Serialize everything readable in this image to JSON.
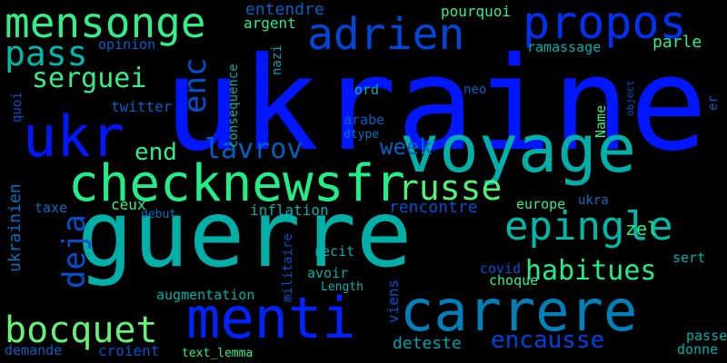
{
  "words": [
    {
      "text": "ukraine",
      "color": "#0016ff"
    },
    {
      "text": "guerre",
      "color": "#00b0a8"
    },
    {
      "text": "voyage",
      "color": "#00b0a8"
    },
    {
      "text": "menti",
      "color": "#0022ff"
    },
    {
      "text": "carrere",
      "color": "#0080b8"
    },
    {
      "text": "checknewsfr",
      "color": "#22ee88"
    },
    {
      "text": "mensonge",
      "color": "#33ee88"
    },
    {
      "text": "propos",
      "color": "#0030f0"
    },
    {
      "text": "adrien",
      "color": "#0046d8"
    },
    {
      "text": "ukr",
      "color": "#0016ff"
    },
    {
      "text": "pass",
      "color": "#00b8a8"
    },
    {
      "text": "epingle",
      "color": "#00b8a8"
    },
    {
      "text": "russe",
      "color": "#55f077"
    },
    {
      "text": "bocquet",
      "color": "#66f077"
    },
    {
      "text": "habitues",
      "color": "#22ee88"
    },
    {
      "text": "deja",
      "color": "#0050d0"
    },
    {
      "text": "serguei",
      "color": "#33ee88"
    },
    {
      "text": "lavrov",
      "color": "#0060c4"
    },
    {
      "text": "week",
      "color": "#0060c4"
    },
    {
      "text": "end",
      "color": "#33ee88"
    },
    {
      "text": "enc",
      "color": "#0050d0"
    },
    {
      "text": "encausse",
      "color": "#0040e0"
    },
    {
      "text": "zel",
      "color": "#22ee88"
    },
    {
      "text": "rencontre",
      "color": "#0050d0"
    },
    {
      "text": "ukrainien",
      "color": "#0070c0"
    },
    {
      "text": "deteste",
      "color": "#00a0b0"
    },
    {
      "text": "entendre",
      "color": "#0060c4"
    },
    {
      "text": "pourquoi",
      "color": "#33ee88"
    },
    {
      "text": "parle",
      "color": "#33ee88"
    },
    {
      "text": "ramassage",
      "color": "#00b0a8"
    },
    {
      "text": "opinion",
      "color": "#0060c4"
    },
    {
      "text": "argent",
      "color": "#22ee88"
    },
    {
      "text": "nazi",
      "color": "#00a0b0"
    },
    {
      "text": "consequence",
      "color": "#00b0a8"
    },
    {
      "text": "ord",
      "color": "#00b0a8"
    },
    {
      "text": "neo",
      "color": "#0060c4"
    },
    {
      "text": "quoi",
      "color": "#0050d0"
    },
    {
      "text": "twitter",
      "color": "#0060c4"
    },
    {
      "text": "arabe",
      "color": "#0060c4"
    },
    {
      "text": "dtype",
      "color": "#0070c0"
    },
    {
      "text": "Name",
      "color": "#33ee88"
    },
    {
      "text": "object",
      "color": "#0050d0"
    },
    {
      "text": "er",
      "color": "#0060c4"
    },
    {
      "text": "europe",
      "color": "#33ee88"
    },
    {
      "text": "ukra",
      "color": "#0070c0"
    },
    {
      "text": "taxe",
      "color": "#0070c0"
    },
    {
      "text": "ceux",
      "color": "#33ee88"
    },
    {
      "text": "debut",
      "color": "#0070c0"
    },
    {
      "text": "inflation",
      "color": "#00b0a8"
    },
    {
      "text": "militaire",
      "color": "#0050d0"
    },
    {
      "text": "recit",
      "color": "#00b0a8"
    },
    {
      "text": "avoir",
      "color": "#00b0a8"
    },
    {
      "text": "Length",
      "color": "#00b0a8"
    },
    {
      "text": "viens",
      "color": "#0050d0"
    },
    {
      "text": "covid",
      "color": "#0050d0"
    },
    {
      "text": "choque",
      "color": "#33ee88"
    },
    {
      "text": "augmentation",
      "color": "#00b0a8"
    },
    {
      "text": "demande",
      "color": "#0060c4"
    },
    {
      "text": "croient",
      "color": "#0050d0"
    },
    {
      "text": "text_lemma",
      "color": "#33ee88"
    },
    {
      "text": "sert",
      "color": "#00b0a8"
    },
    {
      "text": "passe",
      "color": "#00b0a8"
    },
    {
      "text": "donne",
      "color": "#00b0a8"
    }
  ]
}
